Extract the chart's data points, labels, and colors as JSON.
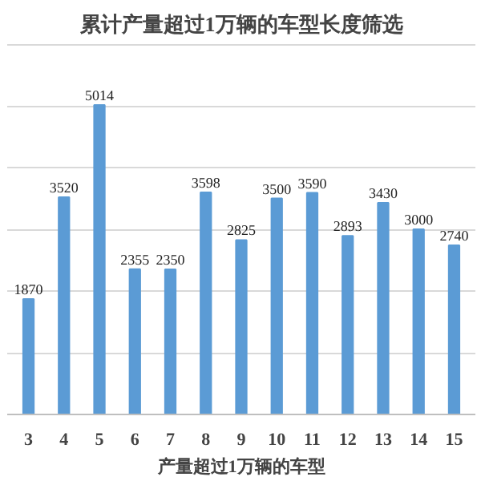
{
  "chart_data": {
    "type": "bar",
    "title": "累计产量超过1万辆的车型长度筛选",
    "xlabel": "产量超过1万辆的车型",
    "categories": [
      "3",
      "4",
      "5",
      "6",
      "7",
      "8",
      "9",
      "10",
      "11",
      "12",
      "13",
      "14",
      "15"
    ],
    "values": [
      1870,
      3520,
      5014,
      2355,
      2350,
      3598,
      2825,
      3500,
      3590,
      2893,
      3430,
      3000,
      2740
    ],
    "color": "#5b9bd5",
    "data_labels": true,
    "grid": "y",
    "tick_labels": "x",
    "legend": false,
    "ylim": [
      0,
      6000
    ],
    "yticks": [
      {
        "value": 0,
        "label": null
      },
      {
        "value": 1000,
        "label": null
      },
      {
        "value": 2000,
        "label": null
      },
      {
        "value": 3000,
        "label": null
      },
      {
        "value": 4000,
        "label": null
      },
      {
        "value": 5000,
        "label": null
      },
      {
        "value": 6000,
        "label": null
      }
    ]
  }
}
